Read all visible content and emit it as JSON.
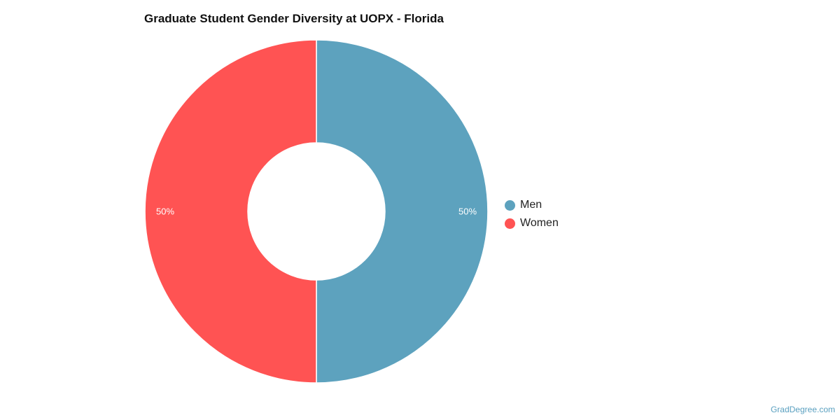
{
  "chart_data": {
    "type": "pie",
    "title": "Graduate Student Gender Diversity at UOPX - Florida",
    "hole": true,
    "legend_position": "right",
    "slices": [
      {
        "name": "Men",
        "value": 50,
        "label": "50%",
        "color": "#5da2be"
      },
      {
        "name": "Women",
        "value": 50,
        "label": "50%",
        "color": "#ff5353"
      }
    ]
  },
  "footer": {
    "source": "GradDegree.com"
  }
}
